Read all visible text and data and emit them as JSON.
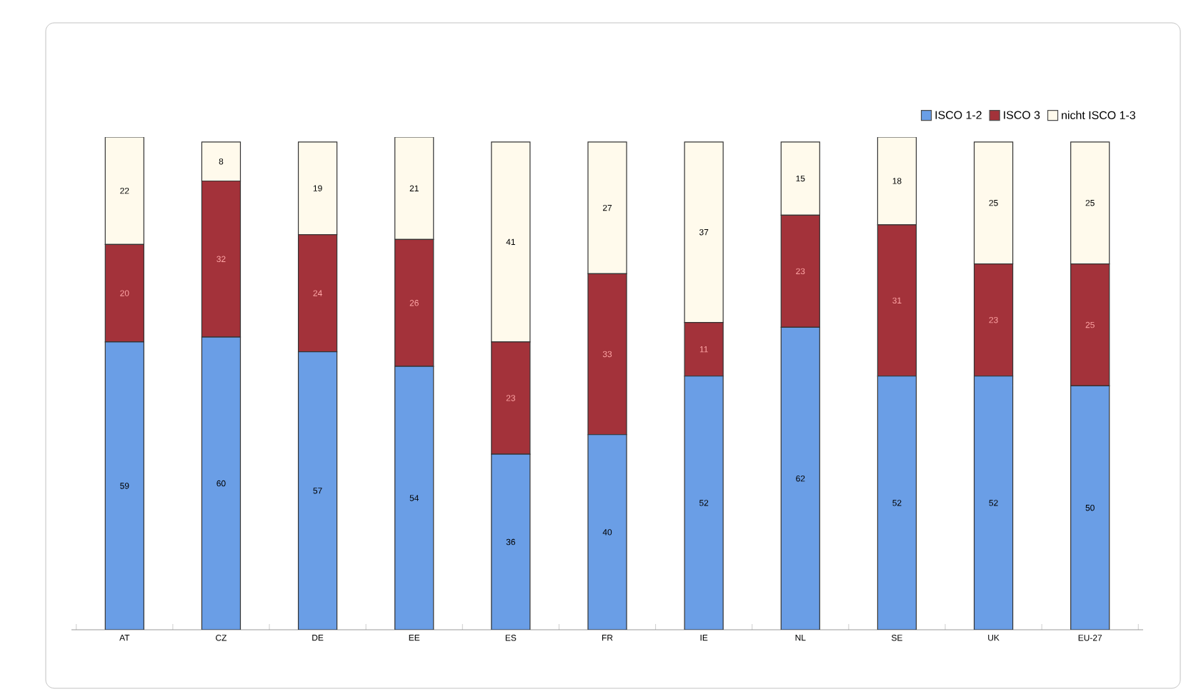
{
  "chart_data": {
    "type": "bar",
    "stacked": true,
    "data_labels": true,
    "legend": "top right",
    "grid": false,
    "categories": [
      "AT",
      "CZ",
      "DE",
      "EE",
      "ES",
      "FR",
      "IE",
      "NL",
      "SE",
      "UK",
      "EU-27"
    ],
    "series": [
      {
        "name": "ISCO 1-2",
        "color": "#6a9ee6",
        "values": [
          59,
          60,
          57,
          54,
          36,
          40,
          52,
          62,
          52,
          52,
          50
        ]
      },
      {
        "name": "ISCO 3",
        "color": "#a3323a",
        "values": [
          20,
          32,
          24,
          26,
          23,
          33,
          11,
          23,
          31,
          23,
          25
        ]
      },
      {
        "name": "nicht ISCO 1-3",
        "color": "#fffaec",
        "values": [
          22,
          8,
          19,
          21,
          41,
          27,
          37,
          15,
          18,
          25,
          25
        ]
      }
    ]
  }
}
